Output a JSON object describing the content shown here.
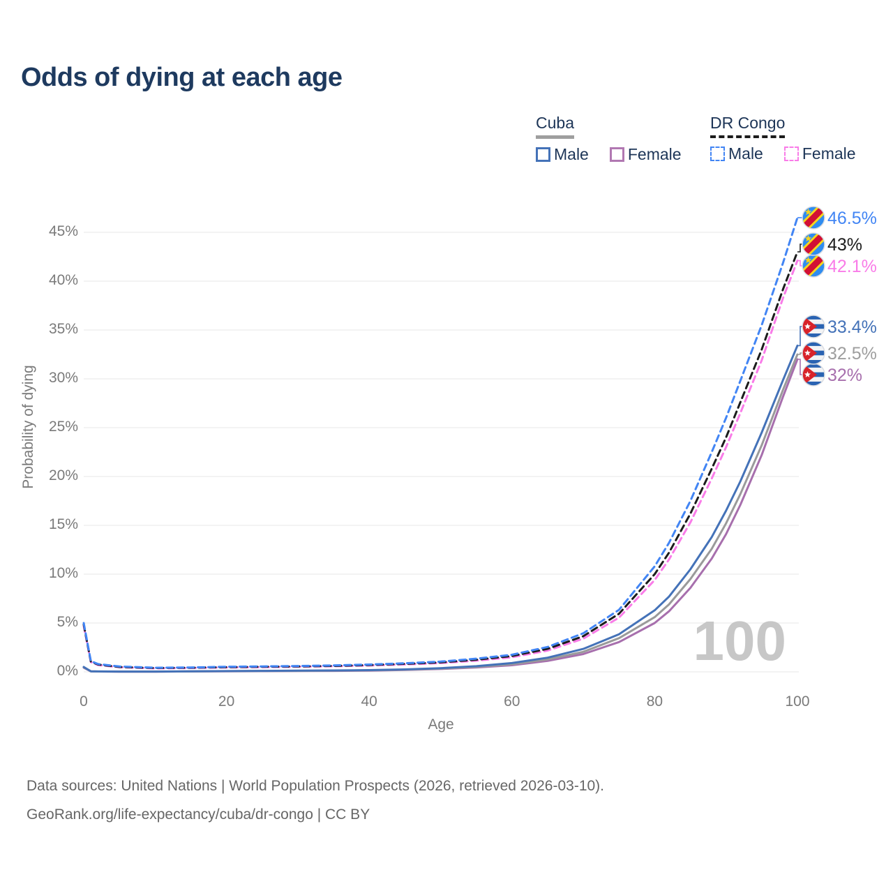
{
  "title": "Odds of dying at each age",
  "legend": {
    "groups": [
      {
        "id": "cuba",
        "label": "Cuba",
        "dashed": false,
        "underline_color": "#9e9e9e",
        "items": [
          {
            "label": "Male",
            "color": "#4472b8"
          },
          {
            "label": "Female",
            "color": "#b178b2"
          }
        ]
      },
      {
        "id": "drc",
        "label": "DR Congo",
        "dashed": true,
        "underline_color": "#1c1c1c",
        "items": [
          {
            "label": "Male",
            "color": "#4285f4"
          },
          {
            "label": "Female",
            "color": "#f97ce8"
          }
        ]
      }
    ]
  },
  "chart_data": {
    "type": "line",
    "title": "Odds of dying at each age",
    "xlabel": "Age",
    "ylabel": "Probability of dying",
    "xlim": [
      0,
      100
    ],
    "ylim": [
      0,
      47.5
    ],
    "x_ticks": [
      0,
      20,
      40,
      60,
      80,
      100
    ],
    "y_ticks_percent": [
      0,
      5,
      10,
      15,
      20,
      25,
      30,
      35,
      40,
      45
    ],
    "grid": "horizontal",
    "legend_position": "top-right",
    "watermark": "100",
    "ages": [
      0,
      1,
      2,
      5,
      10,
      15,
      20,
      25,
      30,
      35,
      40,
      45,
      50,
      55,
      60,
      65,
      70,
      75,
      80,
      82,
      85,
      88,
      90,
      92,
      95,
      98,
      100
    ],
    "series": [
      {
        "id": "cuba-female",
        "name": "Cuba Female",
        "country": "cuba",
        "sex": "female",
        "color": "#a76fad",
        "label_color": "#a76fad",
        "dashed": false,
        "end_label": "32%",
        "end_value": 32.0,
        "values": [
          0.43,
          0.05,
          0.034,
          0.024,
          0.024,
          0.04,
          0.06,
          0.075,
          0.085,
          0.1,
          0.13,
          0.19,
          0.29,
          0.44,
          0.68,
          1.12,
          1.82,
          3.05,
          5.0,
          6.2,
          8.6,
          11.6,
          14.1,
          17.1,
          22.2,
          28.2,
          32.0
        ]
      },
      {
        "id": "cuba-both",
        "name": "Cuba Both sexes",
        "country": "cuba",
        "sex": "both",
        "color": "#9a9a9a",
        "label_color": "#9e9e9e",
        "dashed": false,
        "end_label": "32.5%",
        "end_value": 32.5,
        "values": [
          0.47,
          0.055,
          0.037,
          0.027,
          0.027,
          0.045,
          0.07,
          0.09,
          0.1,
          0.12,
          0.16,
          0.22,
          0.33,
          0.51,
          0.78,
          1.28,
          2.05,
          3.45,
          5.6,
          6.9,
          9.5,
          12.6,
          15.2,
          18.2,
          23.2,
          28.9,
          32.5
        ]
      },
      {
        "id": "cuba-male",
        "name": "Cuba Male",
        "country": "cuba",
        "sex": "male",
        "color": "#4472b8",
        "label_color": "#4472b8",
        "dashed": false,
        "end_label": "33.4%",
        "end_value": 33.4,
        "values": [
          0.5,
          0.06,
          0.04,
          0.03,
          0.03,
          0.05,
          0.08,
          0.1,
          0.12,
          0.14,
          0.18,
          0.25,
          0.38,
          0.58,
          0.9,
          1.45,
          2.35,
          3.85,
          6.3,
          7.7,
          10.5,
          13.8,
          16.5,
          19.5,
          24.5,
          29.9,
          33.4
        ]
      },
      {
        "id": "drc-female",
        "name": "DR Congo Female",
        "country": "drc",
        "sex": "female",
        "color": "#f97ce8",
        "label_color": "#f97ce8",
        "dashed": true,
        "end_label": "42.1%",
        "end_value": 42.1,
        "values": [
          4.7,
          1.0,
          0.7,
          0.47,
          0.36,
          0.39,
          0.45,
          0.48,
          0.52,
          0.57,
          0.65,
          0.76,
          0.9,
          1.14,
          1.49,
          2.18,
          3.4,
          5.55,
          9.4,
          11.5,
          15.3,
          19.8,
          23.0,
          26.5,
          31.9,
          38.3,
          42.1
        ]
      },
      {
        "id": "drc-both",
        "name": "DR Congo Both sexes",
        "country": "drc",
        "sex": "both",
        "color": "#1c1c1c",
        "label_color": "#1c1c1c",
        "dashed": true,
        "end_label": "43%",
        "end_value": 43.0,
        "values": [
          4.85,
          1.05,
          0.75,
          0.5,
          0.39,
          0.42,
          0.48,
          0.52,
          0.56,
          0.61,
          0.7,
          0.82,
          0.97,
          1.24,
          1.62,
          2.36,
          3.65,
          5.95,
          10.0,
          12.2,
          16.2,
          20.8,
          24.0,
          27.6,
          33.0,
          39.2,
          43.0
        ]
      },
      {
        "id": "drc-male",
        "name": "DR Congo Male",
        "country": "drc",
        "sex": "male",
        "color": "#4285f4",
        "label_color": "#4285f4",
        "dashed": true,
        "end_label": "46.5%",
        "end_value": 46.5,
        "values": [
          5.0,
          1.1,
          0.8,
          0.55,
          0.42,
          0.45,
          0.52,
          0.56,
          0.6,
          0.66,
          0.75,
          0.88,
          1.05,
          1.35,
          1.75,
          2.55,
          3.95,
          6.35,
          10.8,
          13.2,
          17.5,
          22.5,
          26.0,
          29.8,
          35.5,
          41.9,
          46.5
        ]
      }
    ]
  },
  "footer": {
    "line1": "Data sources: United Nations | World Population Prospects (2026, retrieved 2026-03-10).",
    "line2": "GeoRank.org/life-expectancy/cuba/dr-congo | CC BY"
  }
}
